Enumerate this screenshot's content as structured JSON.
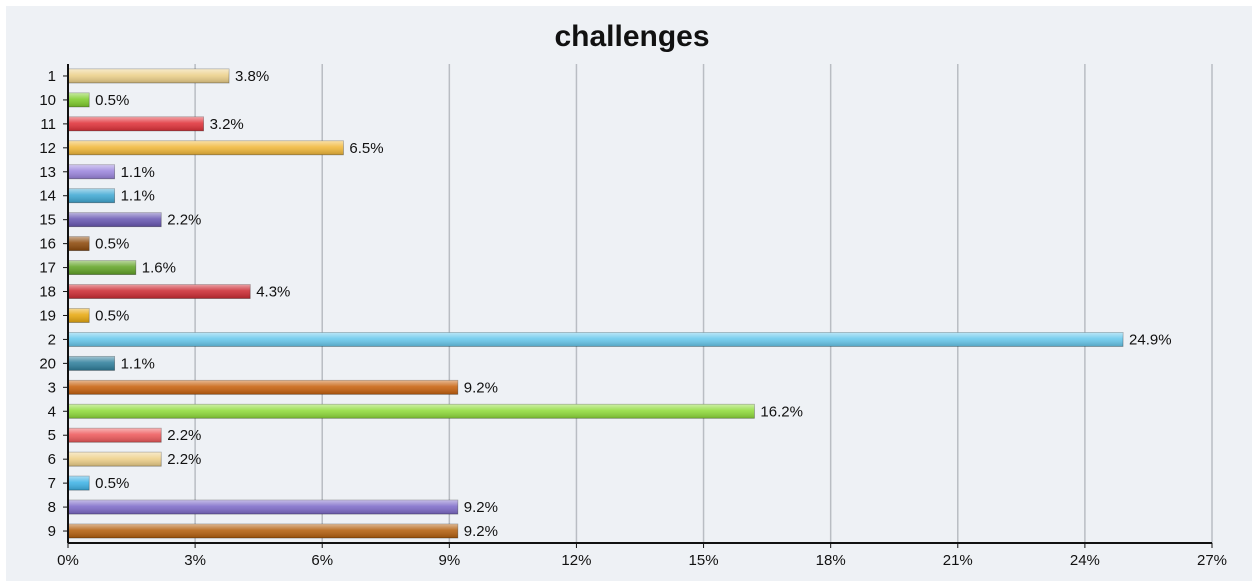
{
  "chart_data": {
    "type": "bar",
    "orientation": "horizontal",
    "title": "challenges",
    "xlabel": "",
    "ylabel": "",
    "xlim": [
      0,
      27
    ],
    "x_ticks": [
      "0%",
      "3%",
      "6%",
      "9%",
      "12%",
      "15%",
      "18%",
      "21%",
      "24%",
      "27%"
    ],
    "grid": "vertical",
    "categories": [
      "1",
      "10",
      "11",
      "12",
      "13",
      "14",
      "15",
      "16",
      "17",
      "18",
      "19",
      "2",
      "20",
      "3",
      "4",
      "5",
      "6",
      "7",
      "8",
      "9"
    ],
    "values": [
      3.8,
      0.5,
      3.2,
      6.5,
      1.1,
      1.1,
      2.2,
      0.5,
      1.6,
      4.3,
      0.5,
      24.9,
      1.1,
      9.2,
      16.2,
      2.2,
      2.2,
      0.5,
      9.2,
      9.2
    ],
    "value_labels": [
      "3.8%",
      "0.5%",
      "3.2%",
      "6.5%",
      "1.1%",
      "1.1%",
      "2.2%",
      "0.5%",
      "1.6%",
      "4.3%",
      "0.5%",
      "24.9%",
      "1.1%",
      "9.2%",
      "16.2%",
      "2.2%",
      "2.2%",
      "0.5%",
      "9.2%",
      "9.2%"
    ],
    "colors": [
      "#ecd08a",
      "#7fcd2c",
      "#e0323a",
      "#f1b83a",
      "#9b86dd",
      "#40a9d4",
      "#6958b3",
      "#8d4a0c",
      "#62a427",
      "#cc2b33",
      "#e8a910",
      "#68c8ec",
      "#2f7f9c",
      "#c8620e",
      "#8fdb3b",
      "#ee5a5c",
      "#eed08a",
      "#3fb3e6",
      "#7e6bc9",
      "#b35f0e"
    ]
  }
}
